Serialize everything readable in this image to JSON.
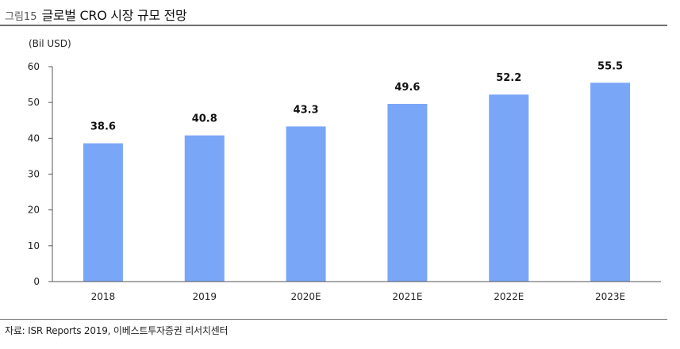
{
  "figure": {
    "number": "그림15",
    "title": "글로벌 CRO 시장 규모 전망",
    "source": "자료: ISR Reports 2019, 이베스트투자증권 리서치센터"
  },
  "colors": {
    "bar": "#7aa6f7",
    "axis": "#555555",
    "rule": "#6f6f6f"
  },
  "chart_data": {
    "type": "bar",
    "title": "",
    "unit_label": "(Bil USD)",
    "xlabel": "",
    "ylabel": "",
    "categories": [
      "2018",
      "2019",
      "2020E",
      "2021E",
      "2022E",
      "2023E"
    ],
    "values": [
      38.6,
      40.8,
      43.3,
      49.6,
      52.2,
      55.5
    ],
    "value_labels": [
      "38.6",
      "40.8",
      "43.3",
      "49.6",
      "52.2",
      "55.5"
    ],
    "ylim": [
      0,
      60
    ],
    "yticks": [
      0,
      10,
      20,
      30,
      40,
      50,
      60
    ],
    "grid": false,
    "legend": "none"
  }
}
